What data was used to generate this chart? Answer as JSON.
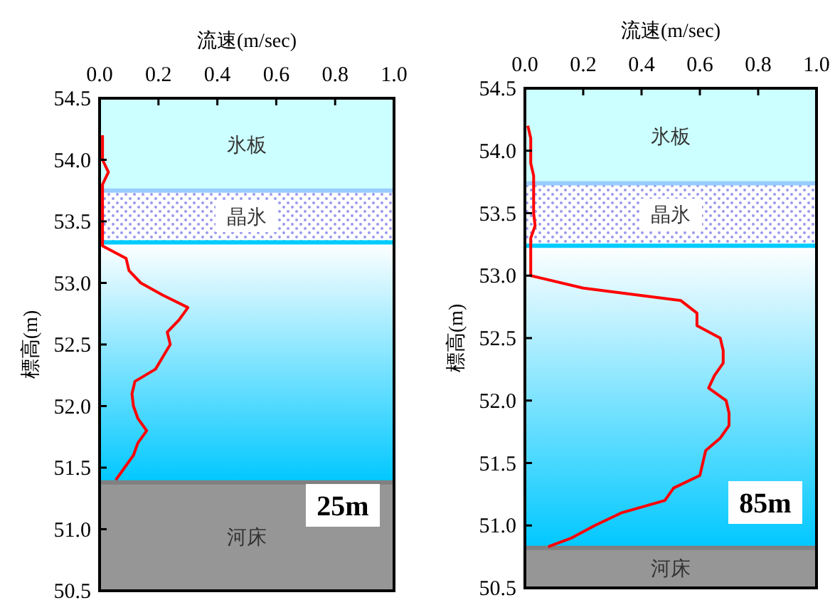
{
  "chart_data": [
    {
      "type": "line",
      "xlabel": "流速(m/sec)",
      "ylabel": "標高(m)",
      "xlim": [
        0,
        1
      ],
      "xticks": [
        {
          "value": 0,
          "label": "0.0"
        },
        {
          "value": 0.2,
          "label": "0.2"
        },
        {
          "value": 0.4,
          "label": "0.4"
        },
        {
          "value": 0.6,
          "label": "0.6"
        },
        {
          "value": 0.8,
          "label": "0.8"
        },
        {
          "value": 1,
          "label": "1.0"
        }
      ],
      "ylim": [
        50.5,
        54.5
      ],
      "yticks": [
        {
          "value": 50.5,
          "label": "50.5"
        },
        {
          "value": 51,
          "label": "51.0"
        },
        {
          "value": 51.5,
          "label": "51.5"
        },
        {
          "value": 52,
          "label": "52.0"
        },
        {
          "value": 52.5,
          "label": "52.5"
        },
        {
          "value": 53,
          "label": "53.0"
        },
        {
          "value": 53.5,
          "label": "53.5"
        },
        {
          "value": 54,
          "label": "54.0"
        },
        {
          "value": 54.5,
          "label": "54.5"
        }
      ],
      "grid": false,
      "marker": "none",
      "line_style": "solid",
      "bands": [
        {
          "axis": "y",
          "from": 53.75,
          "to": 54.5,
          "label": "氷板",
          "color": "#ccffff"
        },
        {
          "axis": "y",
          "from": 53.33,
          "to": 53.75,
          "label": "晶氷",
          "color": "#9999ee"
        },
        {
          "axis": "y",
          "from": 51.38,
          "to": 53.33,
          "color": "#00c8ff"
        },
        {
          "axis": "y",
          "from": 50.5,
          "to": 51.38,
          "label": "河床",
          "color": "#969696"
        }
      ],
      "ref_lines": [
        {
          "axis": "y",
          "value": 53.75,
          "color": "#99ccff"
        },
        {
          "axis": "y",
          "value": 53.33,
          "color": "#00ccff"
        },
        {
          "axis": "y",
          "value": 51.38,
          "color": "#808080"
        }
      ],
      "annotations": [
        "25m"
      ],
      "series": [
        {
          "color": "#ff0000",
          "x": [
            0.01,
            0.01,
            0.01,
            0.03,
            0.01,
            0.01,
            0.01,
            0.01,
            0.01,
            0.01,
            0.09,
            0.1,
            0.14,
            0.215,
            0.3,
            0.27,
            0.23,
            0.24,
            0.215,
            0.19,
            0.12,
            0.11,
            0.115,
            0.13,
            0.16,
            0.13,
            0.115,
            0.085,
            0.055
          ],
          "values": [
            54.2,
            54.1,
            54.0,
            53.9,
            53.8,
            53.7,
            53.6,
            53.5,
            53.4,
            53.3,
            53.2,
            53.1,
            53.0,
            52.9,
            52.8,
            52.7,
            52.6,
            52.5,
            52.4,
            52.3,
            52.2,
            52.1,
            52.0,
            51.9,
            51.8,
            51.7,
            51.6,
            51.5,
            51.4
          ]
        }
      ]
    },
    {
      "type": "line",
      "xlabel": "流速(m/sec)",
      "ylabel": "標高(m)",
      "xlim": [
        0,
        1
      ],
      "xticks": [
        {
          "value": 0,
          "label": "0.0"
        },
        {
          "value": 0.2,
          "label": "0.2"
        },
        {
          "value": 0.4,
          "label": "0.4"
        },
        {
          "value": 0.6,
          "label": "0.6"
        },
        {
          "value": 0.8,
          "label": "0.8"
        },
        {
          "value": 1,
          "label": "1.0"
        }
      ],
      "ylim": [
        50.5,
        54.5
      ],
      "yticks": [
        {
          "value": 50.5,
          "label": "50.5"
        },
        {
          "value": 51,
          "label": "51.0"
        },
        {
          "value": 51.5,
          "label": "51.5"
        },
        {
          "value": 52,
          "label": "52.0"
        },
        {
          "value": 52.5,
          "label": "52.5"
        },
        {
          "value": 53,
          "label": "53.0"
        },
        {
          "value": 53.5,
          "label": "53.5"
        },
        {
          "value": 54,
          "label": "54.0"
        },
        {
          "value": 54.5,
          "label": "54.5"
        }
      ],
      "grid": false,
      "marker": "none",
      "line_style": "solid",
      "bands": [
        {
          "axis": "y",
          "from": 53.74,
          "to": 54.5,
          "label": "氷板",
          "color": "#ccffff"
        },
        {
          "axis": "y",
          "from": 53.24,
          "to": 53.74,
          "label": "晶氷",
          "color": "#9999ee"
        },
        {
          "axis": "y",
          "from": 50.82,
          "to": 53.24,
          "color": "#00c8ff"
        },
        {
          "axis": "y",
          "from": 50.5,
          "to": 50.82,
          "label": "河床",
          "color": "#969696"
        }
      ],
      "ref_lines": [
        {
          "axis": "y",
          "value": 53.74,
          "color": "#99ccff"
        },
        {
          "axis": "y",
          "value": 53.24,
          "color": "#00ccff"
        },
        {
          "axis": "y",
          "value": 50.82,
          "color": "#808080"
        }
      ],
      "annotations": [
        "85m"
      ],
      "series": [
        {
          "color": "#ff0000",
          "x": [
            0.01,
            0.02,
            0.02,
            0.02,
            0.03,
            0.03,
            0.03,
            0.03,
            0.035,
            0.02,
            0.02,
            0.02,
            0.02,
            0.2,
            0.535,
            0.59,
            0.59,
            0.67,
            0.68,
            0.68,
            0.65,
            0.63,
            0.69,
            0.7,
            0.7,
            0.67,
            0.62,
            0.61,
            0.6,
            0.51,
            0.48,
            0.33,
            0.24,
            0.16,
            0.08
          ],
          "values": [
            54.2,
            54.1,
            54.0,
            53.9,
            53.8,
            53.7,
            53.6,
            53.5,
            53.4,
            53.3,
            53.2,
            53.1,
            53.0,
            52.9,
            52.8,
            52.7,
            52.6,
            52.5,
            52.4,
            52.3,
            52.2,
            52.1,
            52.0,
            51.9,
            51.8,
            51.7,
            51.6,
            51.5,
            51.4,
            51.3,
            51.2,
            51.1,
            51.0,
            50.9,
            50.83
          ]
        }
      ]
    }
  ]
}
